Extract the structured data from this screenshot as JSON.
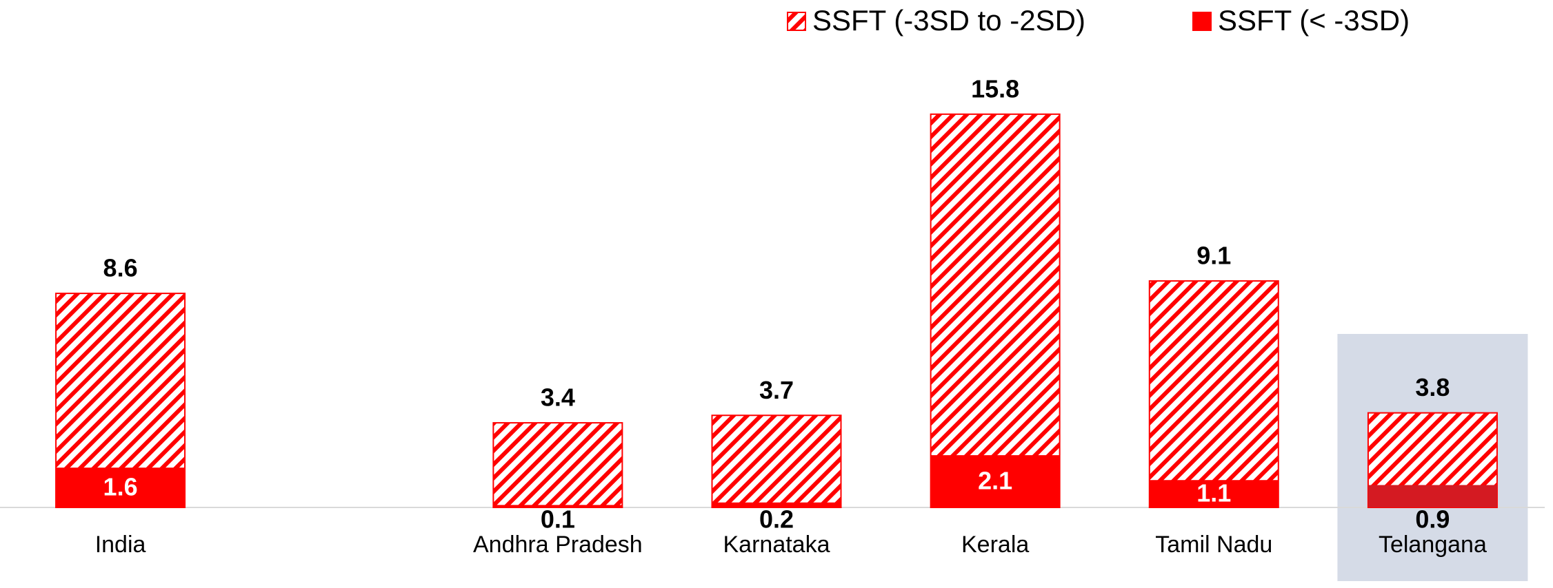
{
  "chart_data": {
    "type": "bar",
    "categories": [
      "India",
      null,
      "Andhra Pradesh",
      "Karnataka",
      "Kerala",
      "Tamil Nadu",
      "Telangana"
    ],
    "series": [
      {
        "name": "SSFT (-3SD to -2SD)",
        "color": "#ff0000",
        "hatch": true,
        "values": [
          8.6,
          null,
          3.4,
          3.7,
          15.8,
          9.1,
          3.8
        ]
      },
      {
        "name": "SSFT (< -3SD)",
        "color": "#ff0000",
        "hatch": false,
        "values": [
          1.6,
          null,
          0.1,
          0.2,
          2.1,
          1.1,
          0.9
        ]
      }
    ],
    "ylim": [
      0,
      20
    ],
    "legend": "top",
    "highlight": "Telangana",
    "highlight_color": "#d41a22",
    "highlight_background": "#d5dbe7"
  }
}
